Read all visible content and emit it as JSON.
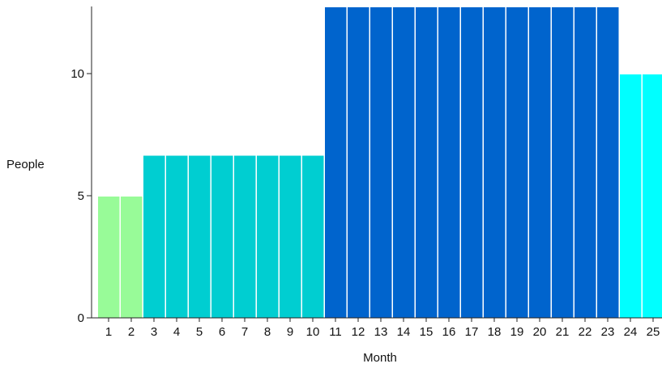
{
  "chart_data": {
    "type": "bar",
    "title": "",
    "xlabel": "Month",
    "ylabel": "People",
    "categories": [
      "1",
      "2",
      "3",
      "4",
      "5",
      "6",
      "7",
      "8",
      "9",
      "10",
      "11",
      "12",
      "13",
      "14",
      "15",
      "16",
      "17",
      "18",
      "19",
      "20",
      "21",
      "22",
      "23",
      "24",
      "25"
    ],
    "values": [
      5,
      5,
      6.67,
      6.67,
      6.67,
      6.67,
      6.67,
      6.67,
      6.67,
      6.67,
      12.75,
      12.75,
      12.75,
      12.75,
      12.75,
      12.75,
      12.75,
      12.75,
      12.75,
      12.75,
      12.75,
      12.75,
      12.75,
      10,
      10
    ],
    "colors": [
      "#98fb98",
      "#98fb98",
      "#00ced1",
      "#00ced1",
      "#00ced1",
      "#00ced1",
      "#00ced1",
      "#00ced1",
      "#00ced1",
      "#00ced1",
      "#0064cd",
      "#0064cd",
      "#0064cd",
      "#0064cd",
      "#0064cd",
      "#0064cd",
      "#0064cd",
      "#0064cd",
      "#0064cd",
      "#0064cd",
      "#0064cd",
      "#0064cd",
      "#0064cd",
      "#00ffff",
      "#00ffff"
    ],
    "yticks": [
      0,
      5,
      10
    ],
    "ylim": [
      0,
      12.75
    ],
    "grid": false,
    "legend": "none"
  }
}
